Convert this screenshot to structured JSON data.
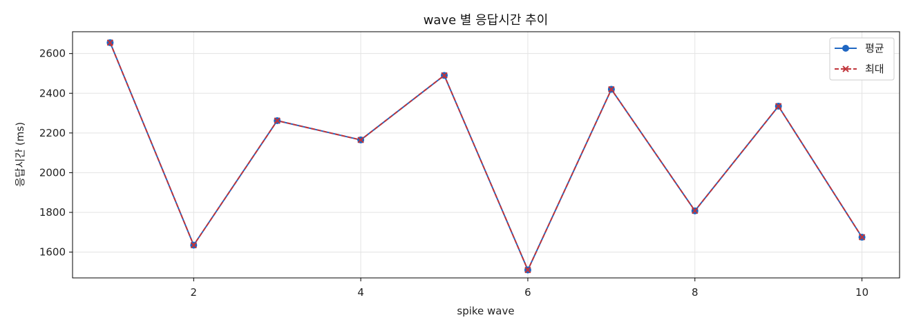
{
  "chart_data": {
    "type": "line",
    "title": "wave 별 응답시간 추이",
    "xlabel": "spike wave",
    "ylabel": "응답시간 (ms)",
    "x": [
      1,
      2,
      3,
      4,
      5,
      6,
      7,
      8,
      9,
      10
    ],
    "xlim": [
      0.55,
      10.45
    ],
    "ylim": [
      1470,
      2710
    ],
    "xticks": [
      2,
      4,
      6,
      8,
      10
    ],
    "yticks": [
      1600,
      1800,
      2000,
      2200,
      2400,
      2600
    ],
    "grid": true,
    "legend_position": "top-right",
    "series": [
      {
        "name": "평균",
        "color": "#1f66c2",
        "marker": "circle",
        "line_style": "solid",
        "values": [
          2655,
          1635,
          2262,
          2165,
          2490,
          1510,
          2420,
          1808,
          2335,
          1675
        ]
      },
      {
        "name": "최대",
        "color": "#c0343a",
        "marker": "x",
        "line_style": "dashed",
        "values": [
          2655,
          1635,
          2262,
          2165,
          2490,
          1510,
          2420,
          1808,
          2335,
          1675
        ]
      }
    ]
  }
}
